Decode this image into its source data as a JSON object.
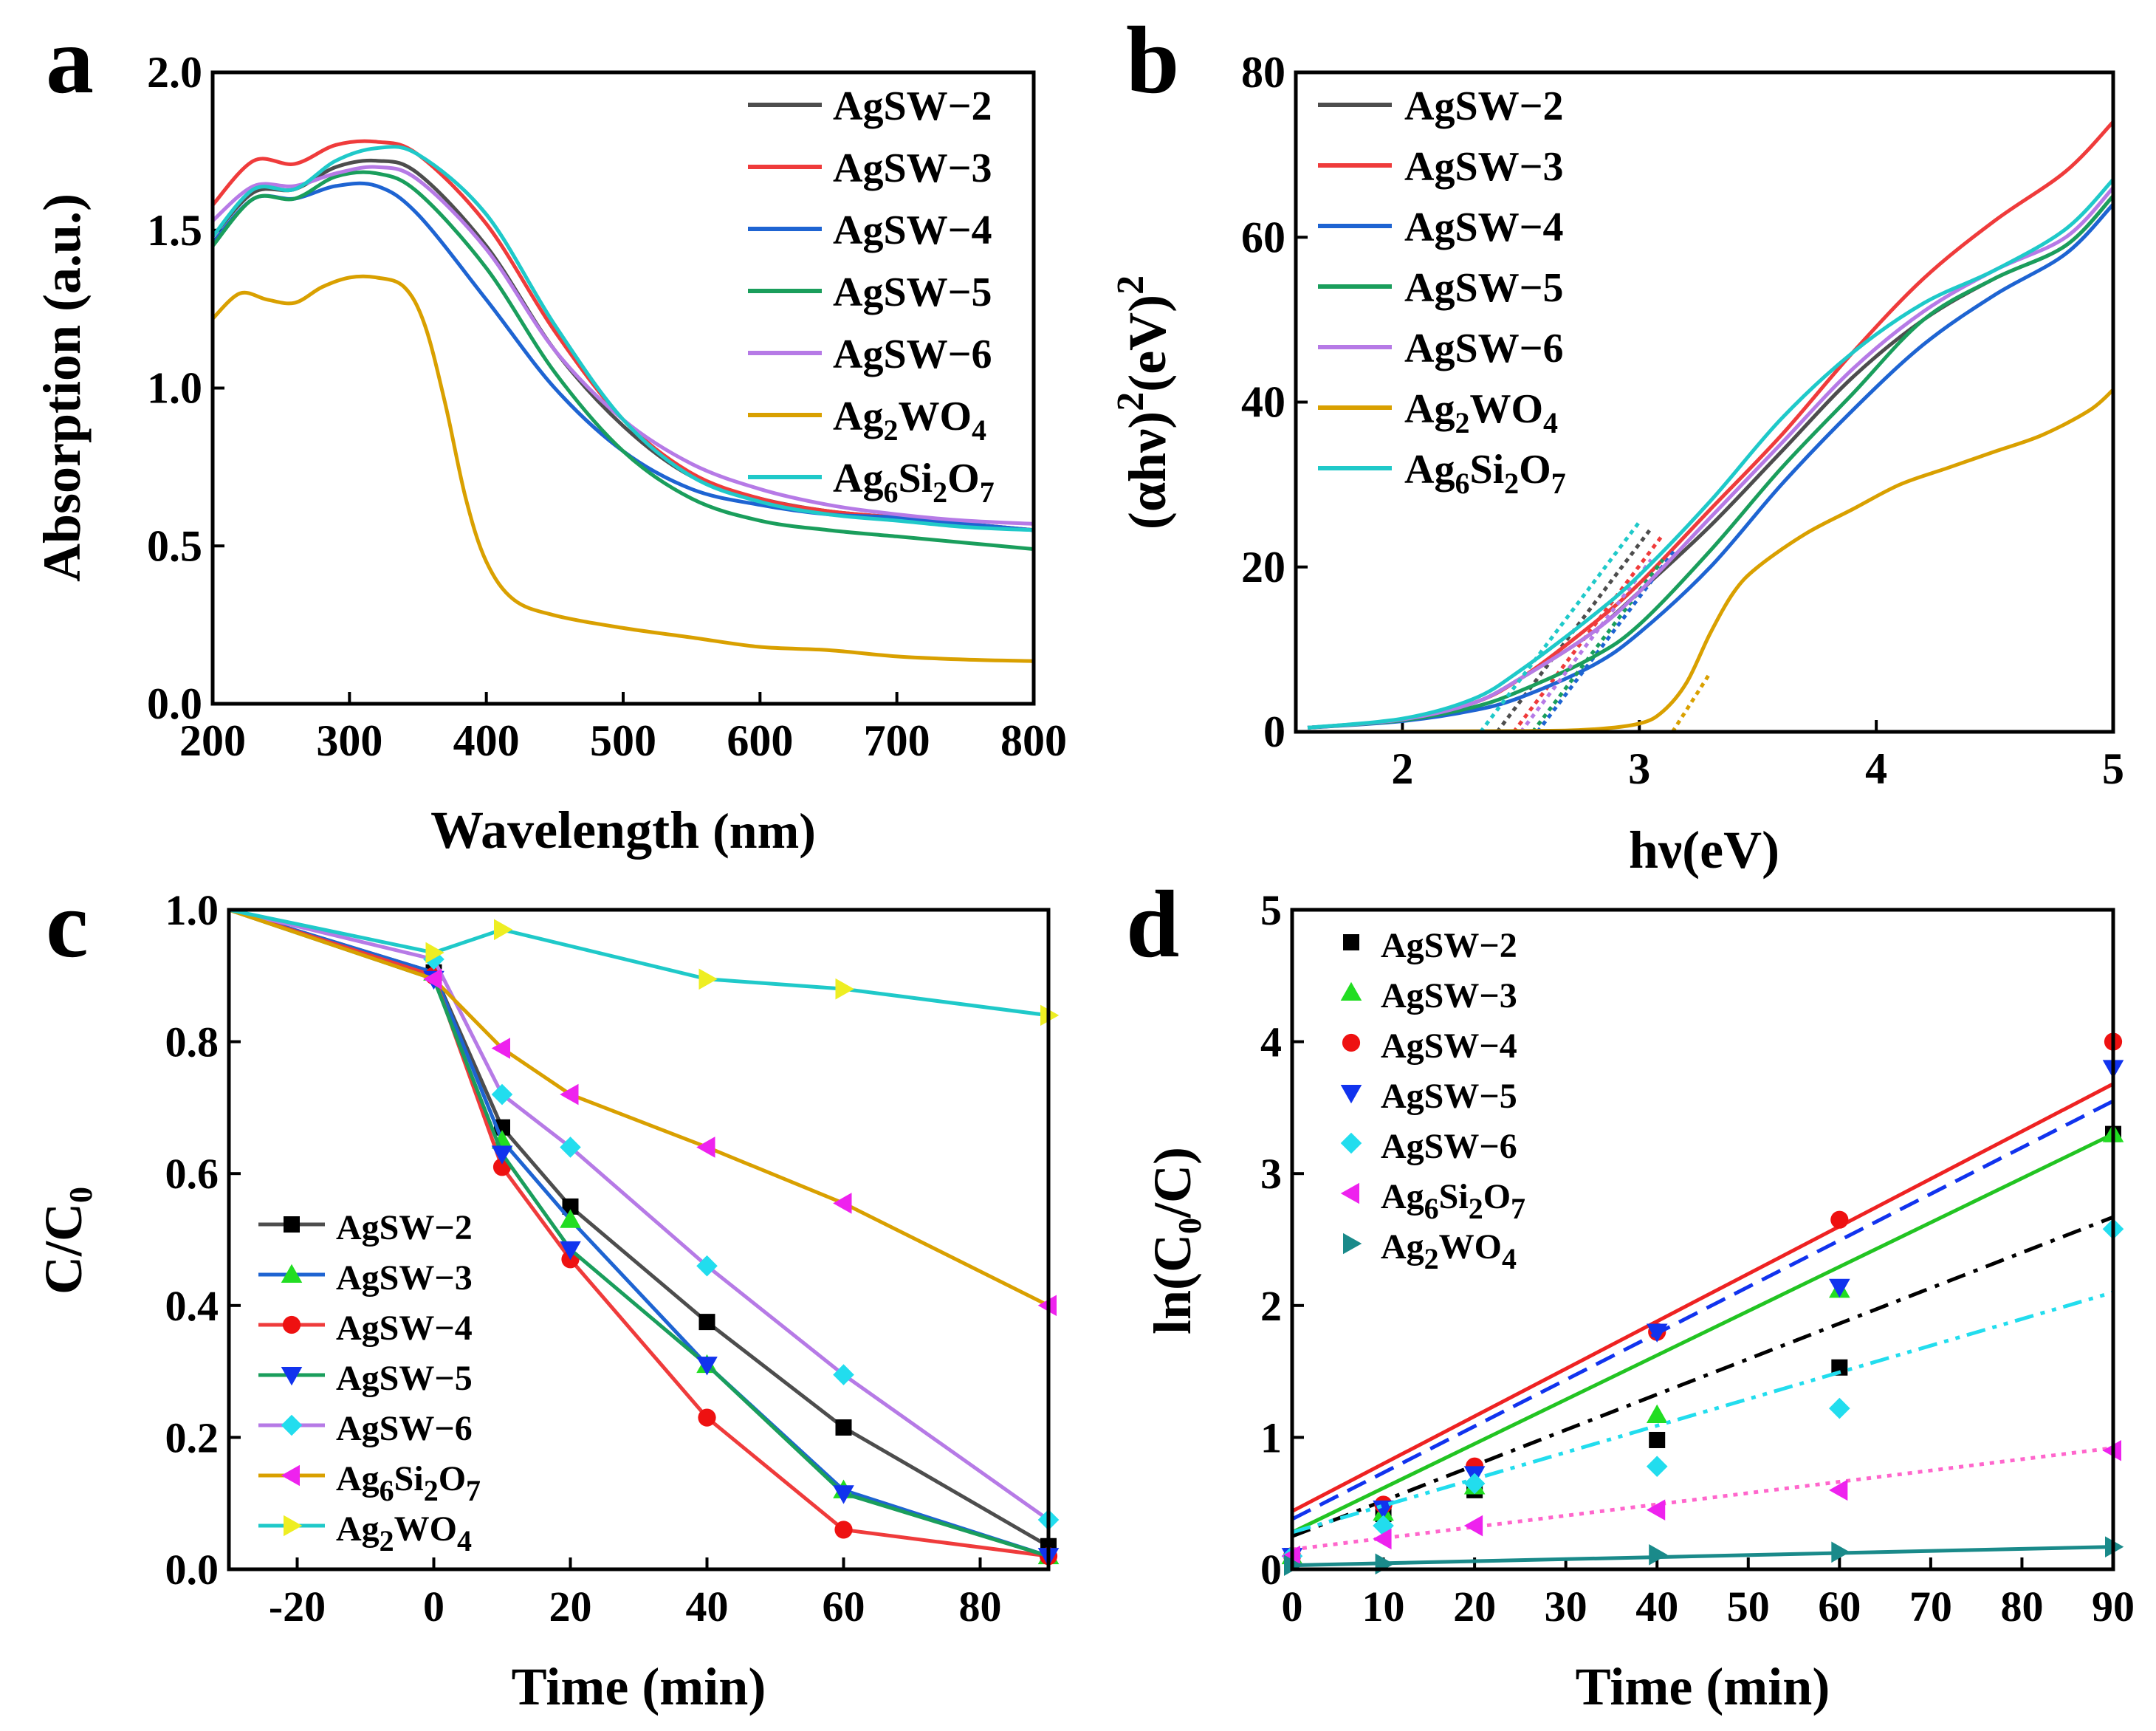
{
  "figure": {
    "colors": {
      "AgSW-2": "#4d4d4d",
      "AgSW-3": "#ef3b3b",
      "AgSW-4": "#1e64d2",
      "AgSW-5": "#1a9e5c",
      "AgSW-6": "#b67ae6",
      "Ag2WO4": "#d9a000",
      "Ag6Si2O7": "#1fc9c9"
    }
  },
  "chart_data": [
    {
      "panel": "a",
      "type": "line",
      "xlabel": "Wavelength (nm)",
      "ylabel": "Absorption (a.u.)",
      "xlim": [
        200,
        800
      ],
      "ylim": [
        0.0,
        2.0
      ],
      "xticks": [
        "200",
        "300",
        "400",
        "500",
        "600",
        "700",
        "800"
      ],
      "yticks": [
        "0.0",
        "0.5",
        "1.0",
        "1.5",
        "2.0"
      ],
      "legend": [
        "AgSW−2",
        "AgSW−3",
        "AgSW−4",
        "AgSW−5",
        "AgSW−6",
        "Ag2WO4",
        "Ag6Si2O7"
      ],
      "series": [
        {
          "name": "AgSW-2",
          "color": "#4d4d4d",
          "x": [
            200,
            230,
            260,
            290,
            320,
            350,
            400,
            450,
            500,
            550,
            600,
            650,
            700,
            750,
            800
          ],
          "y": [
            1.48,
            1.62,
            1.63,
            1.7,
            1.72,
            1.68,
            1.45,
            1.12,
            0.88,
            0.72,
            0.65,
            0.61,
            0.59,
            0.57,
            0.55
          ]
        },
        {
          "name": "AgSW-3",
          "color": "#ef3b3b",
          "x": [
            200,
            230,
            260,
            290,
            320,
            350,
            400,
            450,
            500,
            550,
            600,
            650,
            700,
            750,
            800
          ],
          "y": [
            1.58,
            1.72,
            1.71,
            1.77,
            1.78,
            1.74,
            1.52,
            1.18,
            0.9,
            0.73,
            0.65,
            0.61,
            0.59,
            0.57,
            0.55
          ]
        },
        {
          "name": "AgSW-4",
          "color": "#1e64d2",
          "x": [
            200,
            230,
            260,
            290,
            320,
            350,
            400,
            450,
            500,
            550,
            600,
            650,
            700,
            750,
            800
          ],
          "y": [
            1.46,
            1.6,
            1.6,
            1.64,
            1.64,
            1.55,
            1.28,
            1.0,
            0.8,
            0.68,
            0.63,
            0.6,
            0.59,
            0.57,
            0.55
          ]
        },
        {
          "name": "AgSW-5",
          "color": "#1a9e5c",
          "x": [
            200,
            230,
            260,
            290,
            320,
            350,
            400,
            450,
            500,
            550,
            600,
            650,
            700,
            750,
            800
          ],
          "y": [
            1.45,
            1.6,
            1.6,
            1.67,
            1.68,
            1.62,
            1.38,
            1.05,
            0.8,
            0.65,
            0.58,
            0.55,
            0.53,
            0.51,
            0.49
          ]
        },
        {
          "name": "AgSW-6",
          "color": "#b67ae6",
          "x": [
            200,
            230,
            260,
            290,
            320,
            350,
            400,
            450,
            500,
            550,
            600,
            650,
            700,
            750,
            800
          ],
          "y": [
            1.53,
            1.64,
            1.64,
            1.68,
            1.7,
            1.66,
            1.44,
            1.12,
            0.9,
            0.76,
            0.68,
            0.63,
            0.6,
            0.58,
            0.57
          ]
        },
        {
          "name": "Ag2WO4",
          "color": "#d9a000",
          "x": [
            200,
            220,
            240,
            260,
            280,
            300,
            320,
            340,
            355,
            370,
            385,
            400,
            420,
            450,
            500,
            550,
            600,
            650,
            700,
            750,
            800
          ],
          "y": [
            1.22,
            1.3,
            1.28,
            1.27,
            1.32,
            1.35,
            1.35,
            1.32,
            1.2,
            0.95,
            0.65,
            0.45,
            0.33,
            0.28,
            0.24,
            0.21,
            0.18,
            0.17,
            0.15,
            0.14,
            0.135
          ]
        },
        {
          "name": "Ag6Si2O7",
          "color": "#1fc9c9",
          "x": [
            200,
            230,
            260,
            290,
            320,
            350,
            400,
            450,
            500,
            550,
            600,
            650,
            700,
            750,
            800
          ],
          "y": [
            1.48,
            1.63,
            1.63,
            1.72,
            1.76,
            1.74,
            1.55,
            1.2,
            0.9,
            0.72,
            0.64,
            0.6,
            0.58,
            0.56,
            0.55
          ]
        }
      ]
    },
    {
      "panel": "b",
      "type": "line",
      "xlabel": "hν(eV)",
      "ylabel": "(αhν)²(eV)²",
      "xlim": [
        1.55,
        5.0
      ],
      "ylim": [
        0,
        80
      ],
      "xticks": [
        "2",
        "3",
        "4",
        "5"
      ],
      "yticks": [
        "0",
        "20",
        "40",
        "60",
        "80"
      ],
      "legend": [
        "AgSW−2",
        "AgSW−3",
        "AgSW−4",
        "AgSW−5",
        "AgSW−6",
        "Ag2WO4",
        "Ag6Si2O7"
      ],
      "series": [
        {
          "name": "AgSW-2",
          "color": "#4d4d4d",
          "x": [
            1.6,
            2.0,
            2.3,
            2.5,
            2.8,
            3.0,
            3.3,
            3.6,
            3.9,
            4.2,
            4.5,
            4.8,
            5.0
          ],
          "y": [
            0.5,
            1.5,
            3.5,
            6.5,
            12,
            17,
            25,
            34,
            43,
            50,
            55,
            59,
            65
          ],
          "tangent": [
            2.4,
            3.05
          ]
        },
        {
          "name": "AgSW-3",
          "color": "#ef3b3b",
          "x": [
            1.6,
            2.0,
            2.3,
            2.5,
            2.8,
            3.0,
            3.3,
            3.6,
            3.9,
            4.2,
            4.5,
            4.8,
            5.0
          ],
          "y": [
            0.5,
            1.5,
            3.5,
            6.5,
            13,
            18,
            27,
            36,
            46,
            55,
            62,
            68,
            74
          ],
          "tangent": [
            2.47,
            3.1
          ]
        },
        {
          "name": "AgSW-4",
          "color": "#1e64d2",
          "x": [
            1.6,
            2.0,
            2.3,
            2.5,
            2.8,
            3.0,
            3.3,
            3.6,
            3.9,
            4.2,
            4.5,
            4.8,
            5.0
          ],
          "y": [
            0.5,
            1.3,
            2.6,
            4.2,
            8,
            12,
            20,
            30,
            39,
            47,
            53,
            58,
            64
          ],
          "tangent": [
            2.57,
            3.15
          ]
        },
        {
          "name": "AgSW-5",
          "color": "#1a9e5c",
          "x": [
            1.6,
            2.0,
            2.3,
            2.5,
            2.8,
            3.0,
            3.3,
            3.6,
            3.9,
            4.2,
            4.5,
            4.8,
            5.0
          ],
          "y": [
            0.5,
            1.4,
            3.0,
            5.0,
            9,
            13,
            22,
            32,
            41,
            50,
            55,
            59,
            65
          ],
          "tangent": [
            2.55,
            3.1
          ]
        },
        {
          "name": "AgSW-6",
          "color": "#b67ae6",
          "x": [
            1.6,
            2.0,
            2.3,
            2.5,
            2.8,
            3.0,
            3.3,
            3.6,
            3.9,
            4.2,
            4.5,
            4.8,
            5.0
          ],
          "y": [
            0.5,
            1.5,
            3.5,
            6.5,
            12,
            17,
            26,
            35,
            44,
            51,
            56,
            60,
            66
          ],
          "tangent": [
            2.5,
            3.05
          ]
        },
        {
          "name": "Ag2WO4",
          "color": "#d9a000",
          "x": [
            1.6,
            2.5,
            2.8,
            3.0,
            3.1,
            3.2,
            3.3,
            3.4,
            3.5,
            3.7,
            3.9,
            4.1,
            4.3,
            4.5,
            4.7,
            4.9,
            5.0
          ],
          "y": [
            0,
            0.1,
            0.3,
            1.0,
            2.5,
            6,
            12,
            17,
            20,
            24,
            27,
            30,
            32,
            34,
            36,
            39,
            41.5
          ],
          "tangent": [
            3.14,
            3.3
          ]
        },
        {
          "name": "Ag6Si2O7",
          "color": "#1fc9c9",
          "x": [
            1.6,
            2.0,
            2.3,
            2.5,
            2.8,
            3.0,
            3.3,
            3.6,
            3.9,
            4.2,
            4.5,
            4.8,
            5.0
          ],
          "y": [
            0.5,
            1.6,
            4.0,
            7.5,
            14,
            19,
            28,
            38,
            46,
            52,
            56,
            61,
            67
          ],
          "tangent": [
            2.33,
            3.0
          ]
        }
      ]
    },
    {
      "panel": "c",
      "type": "line",
      "xlabel": "Time (min)",
      "ylabel": "C/C₀",
      "xlim": [
        -30,
        90
      ],
      "ylim": [
        0.0,
        1.0
      ],
      "xticks": [
        "-20",
        "0",
        "20",
        "40",
        "60",
        "80"
      ],
      "yticks": [
        "0.0",
        "0.2",
        "0.4",
        "0.6",
        "0.8",
        "1.0"
      ],
      "legend": [
        "AgSW−2",
        "AgSW−3",
        "AgSW−4",
        "AgSW−5",
        "AgSW−6",
        "Ag6Si2O7",
        "Ag2WO4"
      ],
      "series": [
        {
          "name": "AgSW-2",
          "color": "#4d4d4d",
          "marker": "square",
          "markerColor": "#000000",
          "x": [
            -30,
            0,
            10,
            20,
            40,
            60,
            90
          ],
          "y": [
            1.0,
            0.905,
            0.67,
            0.55,
            0.375,
            0.215,
            0.035
          ]
        },
        {
          "name": "AgSW-3",
          "color": "#1e64d2",
          "marker": "triangle-up",
          "markerColor": "#22dd22",
          "x": [
            -30,
            0,
            10,
            20,
            40,
            60,
            90
          ],
          "y": [
            1.0,
            0.905,
            0.65,
            0.53,
            0.31,
            0.12,
            0.02
          ]
        },
        {
          "name": "AgSW-4",
          "color": "#ef3b3b",
          "marker": "circle",
          "markerColor": "#ee1111",
          "x": [
            -30,
            0,
            10,
            20,
            40,
            60,
            90
          ],
          "y": [
            1.0,
            0.9,
            0.61,
            0.47,
            0.23,
            0.06,
            0.02
          ]
        },
        {
          "name": "AgSW-5",
          "color": "#1a9e5c",
          "marker": "triangle-down",
          "markerColor": "#1133ee",
          "x": [
            -30,
            0,
            10,
            20,
            40,
            60,
            90
          ],
          "y": [
            1.0,
            0.895,
            0.63,
            0.485,
            0.31,
            0.115,
            0.02
          ]
        },
        {
          "name": "AgSW-6",
          "color": "#b67ae6",
          "marker": "diamond",
          "markerColor": "#22ddee",
          "x": [
            -30,
            0,
            10,
            20,
            40,
            60,
            90
          ],
          "y": [
            1.0,
            0.925,
            0.72,
            0.64,
            0.46,
            0.295,
            0.075
          ]
        },
        {
          "name": "Ag6Si2O7",
          "color": "#d9a000",
          "marker": "triangle-left",
          "markerColor": "#ee22ee",
          "x": [
            -30,
            0,
            10,
            20,
            40,
            60,
            90
          ],
          "y": [
            1.0,
            0.895,
            0.79,
            0.72,
            0.64,
            0.555,
            0.4
          ]
        },
        {
          "name": "Ag2WO4",
          "color": "#1fc9c9",
          "marker": "triangle-right",
          "markerColor": "#eeee22",
          "x": [
            -30,
            0,
            10,
            40,
            60,
            90
          ],
          "y": [
            1.0,
            0.935,
            0.97,
            0.895,
            0.88,
            0.84
          ]
        }
      ]
    },
    {
      "panel": "d",
      "type": "scatter",
      "xlabel": "Time (min)",
      "ylabel": "ln(C₀/C)",
      "xlim": [
        0,
        90
      ],
      "ylim": [
        0,
        5
      ],
      "xticks": [
        "0",
        "10",
        "20",
        "30",
        "40",
        "50",
        "60",
        "70",
        "80",
        "90"
      ],
      "yticks": [
        "0",
        "1",
        "2",
        "3",
        "4",
        "5"
      ],
      "legend": [
        "AgSW−2",
        "AgSW−3",
        "AgSW−4",
        "AgSW−5",
        "AgSW−6",
        "Ag6Si2O7",
        "Ag2WO4"
      ],
      "series": [
        {
          "name": "AgSW-2",
          "marker": "square",
          "markerColor": "#000000",
          "line": {
            "color": "#000000",
            "style": "dashdot",
            "y0": 0.25,
            "y90": 2.67
          },
          "x": [
            0,
            10,
            20,
            40,
            60,
            90
          ],
          "y": [
            0.1,
            0.42,
            0.6,
            0.98,
            1.53,
            3.3
          ]
        },
        {
          "name": "AgSW-3",
          "marker": "triangle-up",
          "markerColor": "#22dd22",
          "line": {
            "color": "#22c422",
            "style": "solid",
            "y0": 0.28,
            "y90": 3.3
          },
          "x": [
            0,
            10,
            20,
            40,
            60,
            90
          ],
          "y": [
            0.1,
            0.43,
            0.63,
            1.17,
            2.12,
            3.3
          ]
        },
        {
          "name": "AgSW-4",
          "marker": "circle",
          "markerColor": "#ee1111",
          "line": {
            "color": "#ee2222",
            "style": "solid",
            "y0": 0.44,
            "y90": 3.68
          },
          "x": [
            0,
            10,
            20,
            40,
            60,
            90
          ],
          "y": [
            0.1,
            0.49,
            0.78,
            1.8,
            2.65,
            4.0
          ]
        },
        {
          "name": "AgSW-5",
          "marker": "triangle-down",
          "markerColor": "#1133ee",
          "line": {
            "color": "#1133ee",
            "style": "dashed",
            "y0": 0.38,
            "y90": 3.55
          },
          "x": [
            0,
            10,
            20,
            40,
            60,
            90
          ],
          "y": [
            0.1,
            0.46,
            0.72,
            1.8,
            2.14,
            3.8
          ]
        },
        {
          "name": "AgSW-6",
          "marker": "diamond",
          "markerColor": "#22ddee",
          "line": {
            "color": "#22ddee",
            "style": "dashdotdot",
            "y0": 0.28,
            "y90": 2.1
          },
          "x": [
            0,
            10,
            20,
            40,
            60,
            90
          ],
          "y": [
            0.1,
            0.33,
            0.65,
            0.78,
            1.22,
            2.58
          ]
        },
        {
          "name": "Ag6Si2O7",
          "marker": "triangle-left",
          "markerColor": "#ee22ee",
          "line": {
            "color": "#ff66cc",
            "style": "dotted",
            "y0": 0.15,
            "y90": 0.92
          },
          "x": [
            0,
            10,
            20,
            40,
            60,
            90
          ],
          "y": [
            0.1,
            0.23,
            0.33,
            0.45,
            0.6,
            0.9
          ]
        },
        {
          "name": "Ag2WO4",
          "marker": "triangle-right",
          "markerColor": "#1a8a8a",
          "line": {
            "color": "#1a8a8a",
            "style": "solid",
            "y0": 0.03,
            "y90": 0.17
          },
          "x": [
            0,
            10,
            40,
            60,
            90
          ],
          "y": [
            0.03,
            0.04,
            0.11,
            0.13,
            0.17
          ]
        }
      ]
    }
  ]
}
